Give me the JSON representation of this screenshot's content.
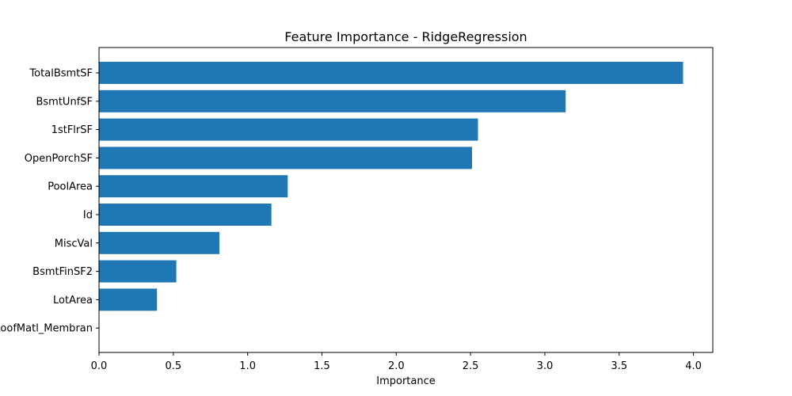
{
  "chart_data": {
    "type": "bar",
    "orientation": "horizontal",
    "title": "Feature Importance - RidgeRegression",
    "xlabel": "Importance",
    "ylabel": "",
    "categories": [
      "TotalBsmtSF",
      "BsmtUnfSF",
      "1stFlrSF",
      "OpenPorchSF",
      "PoolArea",
      "Id",
      "MiscVal",
      "BsmtFinSF2",
      "LotArea",
      "RoofMatl_Membran"
    ],
    "values": [
      3.93,
      3.14,
      2.55,
      2.51,
      1.27,
      1.16,
      0.81,
      0.52,
      0.39,
      0.0
    ],
    "xlim": [
      0.0,
      4.13
    ],
    "xticks": [
      0.0,
      0.5,
      1.0,
      1.5,
      2.0,
      2.5,
      3.0,
      3.5,
      4.0
    ],
    "xtick_labels": [
      "0.0",
      "0.5",
      "1.0",
      "1.5",
      "2.0",
      "2.5",
      "3.0",
      "3.5",
      "4.0"
    ],
    "bar_color": "#1f77b4",
    "grid": false
  }
}
